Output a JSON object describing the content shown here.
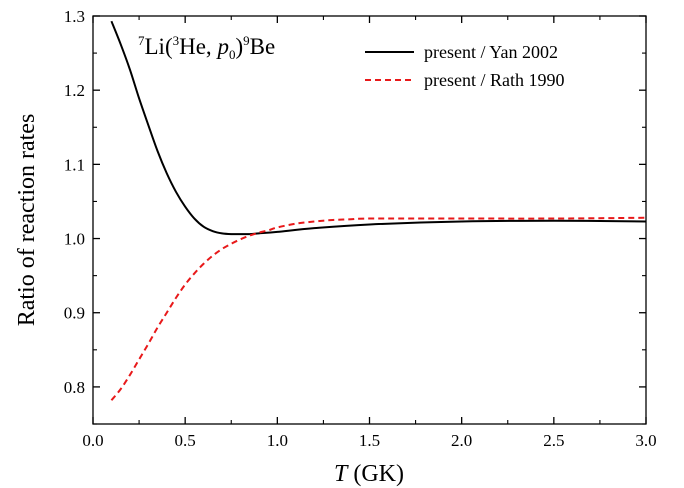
{
  "chart_data": {
    "type": "line",
    "reaction_label": {
      "pre": "7",
      "li": "Li(",
      "sup3": "3",
      "he": "He, ",
      "p": "p",
      "sub0": "0",
      "close": ")",
      "sup9": "9",
      "be": "Be"
    },
    "xlabel": {
      "var": "T",
      "unit": " (GK)"
    },
    "ylabel": "Ratio of reaction rates",
    "xlim": [
      0.0,
      3.0
    ],
    "ylim": [
      0.75,
      1.3
    ],
    "x_ticks": [
      0.0,
      0.5,
      1.0,
      1.5,
      2.0,
      2.5,
      3.0
    ],
    "x_tick_labels": [
      "0.0",
      "0.5",
      "1.0",
      "1.5",
      "2.0",
      "2.5",
      "3.0"
    ],
    "y_ticks": [
      0.8,
      0.9,
      1.0,
      1.1,
      1.2,
      1.3
    ],
    "y_tick_labels": [
      "0.8",
      "0.9",
      "1.0",
      "1.1",
      "1.2",
      "1.3"
    ],
    "grid": false,
    "legend_position": "top-right",
    "series": [
      {
        "name": "present / Yan 2002",
        "color": "#000000",
        "dash": "solid",
        "x": [
          0.1,
          0.15,
          0.2,
          0.25,
          0.3,
          0.35,
          0.4,
          0.45,
          0.5,
          0.55,
          0.6,
          0.65,
          0.7,
          0.75,
          0.8,
          0.85,
          0.9,
          1.0,
          1.2,
          1.5,
          2.0,
          2.5,
          3.0
        ],
        "y": [
          1.293,
          1.262,
          1.228,
          1.189,
          1.153,
          1.118,
          1.088,
          1.063,
          1.043,
          1.027,
          1.016,
          1.01,
          1.007,
          1.006,
          1.006,
          1.006,
          1.007,
          1.009,
          1.014,
          1.019,
          1.023,
          1.024,
          1.023
        ]
      },
      {
        "name": "present / Rath 1990",
        "color": "#e8191a",
        "dash": "dashed",
        "x": [
          0.1,
          0.15,
          0.2,
          0.25,
          0.3,
          0.35,
          0.4,
          0.45,
          0.5,
          0.55,
          0.6,
          0.65,
          0.7,
          0.75,
          0.8,
          0.85,
          0.9,
          0.95,
          1.0,
          1.1,
          1.2,
          1.3,
          1.4,
          1.5,
          2.0,
          2.5,
          3.0
        ],
        "y": [
          0.782,
          0.797,
          0.816,
          0.837,
          0.858,
          0.88,
          0.9,
          0.92,
          0.938,
          0.953,
          0.966,
          0.977,
          0.986,
          0.993,
          0.999,
          1.004,
          1.008,
          1.011,
          1.015,
          1.02,
          1.023,
          1.025,
          1.026,
          1.027,
          1.027,
          1.027,
          1.028
        ]
      }
    ]
  }
}
